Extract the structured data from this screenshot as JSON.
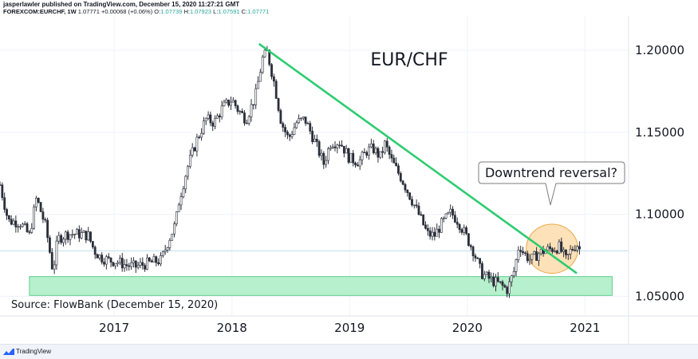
{
  "header": {
    "publisher_line": "jasperlawler published on TradingView.com, December 15, 2020 11:27:21 GMT",
    "symbol": "FOREXCOM:EURCHF, 1W",
    "last": "1.07771",
    "change": "+0.00068 (+0.06%)",
    "open_label": "O:",
    "open": "1.07739",
    "high_label": "H:",
    "high": "1.07923",
    "low_label": "L:",
    "low": "1.07591",
    "close_label": "C:",
    "close": "1.07771"
  },
  "footer": {
    "brand": "TradingView"
  },
  "colors": {
    "up": "#26a69a",
    "down": "#131722",
    "candle": "#2a2e39",
    "trendline": "#2ecc71",
    "support_fill": "#b7f0cc",
    "support_stroke": "#3ec47a",
    "highlight_fill": "#fcd9a6",
    "highlight_stroke": "#e9a94b",
    "grid": "#f0f3fa"
  },
  "chart_data": {
    "type": "candlestick",
    "title": "EUR/CHF",
    "source": "Source: FlowBank (December 15, 2020)",
    "annotation": "Downtrend reversal?",
    "y_ticks": [
      "1.20000",
      "1.15000",
      "1.10000",
      "1.05000"
    ],
    "x_ticks": [
      "2017",
      "2018",
      "2019",
      "2020",
      "2021"
    ],
    "ylim": [
      1.038,
      1.221
    ],
    "xlim": [
      2016.03,
      2021.37
    ],
    "last_price": 1.07771,
    "trendline": {
      "from": [
        2018.23,
        1.204
      ],
      "to": [
        2020.93,
        1.064
      ]
    },
    "support_zone": {
      "x": [
        2016.28,
        2021.23
      ],
      "y": [
        1.0505,
        1.062
      ]
    },
    "highlight_circle": {
      "center": [
        2020.72,
        1.079
      ],
      "radius_y": 0.015
    },
    "price_path": [
      [
        2016.03,
        1.118
      ],
      [
        2016.1,
        1.096
      ],
      [
        2016.2,
        1.095
      ],
      [
        2016.28,
        1.087
      ],
      [
        2016.34,
        1.11
      ],
      [
        2016.42,
        1.092
      ],
      [
        2016.48,
        1.065
      ],
      [
        2016.52,
        1.085
      ],
      [
        2016.6,
        1.088
      ],
      [
        2016.7,
        1.088
      ],
      [
        2016.78,
        1.087
      ],
      [
        2016.83,
        1.078
      ],
      [
        2016.88,
        1.074
      ],
      [
        2016.95,
        1.072
      ],
      [
        2017.03,
        1.071
      ],
      [
        2017.1,
        1.069
      ],
      [
        2017.18,
        1.068
      ],
      [
        2017.28,
        1.07
      ],
      [
        2017.4,
        1.072
      ],
      [
        2017.45,
        1.082
      ],
      [
        2017.52,
        1.094
      ],
      [
        2017.55,
        1.108
      ],
      [
        2017.62,
        1.128
      ],
      [
        2017.7,
        1.145
      ],
      [
        2017.78,
        1.158
      ],
      [
        2017.85,
        1.156
      ],
      [
        2017.92,
        1.165
      ],
      [
        2018.0,
        1.17
      ],
      [
        2018.05,
        1.164
      ],
      [
        2018.12,
        1.158
      ],
      [
        2018.2,
        1.172
      ],
      [
        2018.26,
        1.195
      ],
      [
        2018.3,
        1.199
      ],
      [
        2018.36,
        1.18
      ],
      [
        2018.42,
        1.156
      ],
      [
        2018.48,
        1.146
      ],
      [
        2018.55,
        1.156
      ],
      [
        2018.62,
        1.158
      ],
      [
        2018.7,
        1.145
      ],
      [
        2018.78,
        1.131
      ],
      [
        2018.84,
        1.144
      ],
      [
        2018.92,
        1.144
      ],
      [
        2019.0,
        1.134
      ],
      [
        2019.08,
        1.132
      ],
      [
        2019.15,
        1.139
      ],
      [
        2019.2,
        1.14
      ],
      [
        2019.26,
        1.135
      ],
      [
        2019.3,
        1.143
      ],
      [
        2019.36,
        1.132
      ],
      [
        2019.44,
        1.122
      ],
      [
        2019.52,
        1.11
      ],
      [
        2019.6,
        1.098
      ],
      [
        2019.66,
        1.088
      ],
      [
        2019.72,
        1.087
      ],
      [
        2019.78,
        1.094
      ],
      [
        2019.86,
        1.101
      ],
      [
        2019.92,
        1.096
      ],
      [
        2019.98,
        1.088
      ],
      [
        2020.05,
        1.078
      ],
      [
        2020.12,
        1.064
      ],
      [
        2020.2,
        1.06
      ],
      [
        2020.28,
        1.057
      ],
      [
        2020.34,
        1.054
      ],
      [
        2020.4,
        1.066
      ],
      [
        2020.44,
        1.082
      ],
      [
        2020.48,
        1.076
      ],
      [
        2020.54,
        1.072
      ],
      [
        2020.6,
        1.076
      ],
      [
        2020.66,
        1.078
      ],
      [
        2020.72,
        1.079
      ],
      [
        2020.78,
        1.08
      ],
      [
        2020.84,
        1.072
      ],
      [
        2020.88,
        1.078
      ],
      [
        2020.93,
        1.082
      ],
      [
        2020.96,
        1.0777
      ]
    ]
  }
}
